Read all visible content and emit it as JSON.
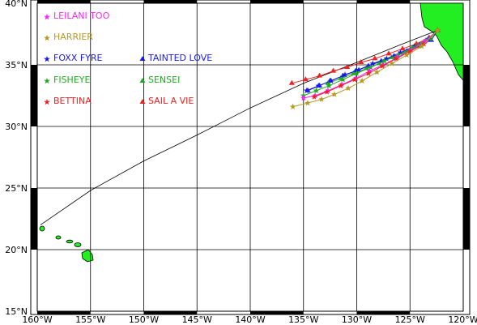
{
  "map": {
    "lon_range": [
      -160,
      -120
    ],
    "lat_range": [
      15,
      40
    ],
    "x_ticks": [
      "160°W",
      "155°W",
      "150°W",
      "145°W",
      "140°W",
      "135°W",
      "130°W",
      "125°W",
      "120°W"
    ],
    "y_ticks": [
      "15°N",
      "20°N",
      "25°N",
      "30°N",
      "35°N",
      "40°N"
    ],
    "grid": true,
    "land_color": "#22ee22",
    "border_style": "alternating black/white frame"
  },
  "legend": [
    {
      "label": "LEILANI TOO",
      "color": "#ff22ff",
      "marker": "star"
    },
    {
      "label": "HARRIER",
      "color": "#b39a22",
      "marker": "star"
    },
    {
      "label": "FOXX FYRE",
      "color": "#1a1aee",
      "marker": "star"
    },
    {
      "label": "TAINTED LOVE",
      "color": "#1a1aee",
      "marker": "triangle"
    },
    {
      "label": "FISHEYE",
      "color": "#22aa22",
      "marker": "star"
    },
    {
      "label": "SENSEI",
      "color": "#22aa22",
      "marker": "triangle"
    },
    {
      "label": "BETTINA",
      "color": "#ee2222",
      "marker": "star"
    },
    {
      "label": "SAIL A VIE",
      "color": "#ee2222",
      "marker": "triangle"
    }
  ],
  "great_circle": [
    [
      -122.4,
      37.8
    ],
    [
      -126,
      36.6
    ],
    [
      -130,
      35.2
    ],
    [
      -135,
      33.5
    ],
    [
      -140,
      31.5
    ],
    [
      -145,
      29.3
    ],
    [
      -150,
      27.2
    ],
    [
      -155,
      24.8
    ],
    [
      -159.7,
      22.0
    ]
  ],
  "tracks": [
    {
      "label": "SAIL A VIE",
      "color": "#ee2222",
      "marker": "triangle",
      "points": [
        [
          -122.4,
          37.8
        ],
        [
          -123.2,
          37.2
        ],
        [
          -124.4,
          36.7
        ],
        [
          -125.7,
          36.3
        ],
        [
          -127.0,
          35.9
        ],
        [
          -128.3,
          35.5
        ],
        [
          -129.6,
          35.2
        ],
        [
          -130.9,
          34.8
        ],
        [
          -132.2,
          34.5
        ],
        [
          -133.5,
          34.1
        ],
        [
          -134.8,
          33.8
        ],
        [
          -136.1,
          33.5
        ]
      ]
    },
    {
      "label": "TAINTED LOVE",
      "color": "#1a1aee",
      "marker": "triangle",
      "points": [
        [
          -122.4,
          37.8
        ],
        [
          -123.0,
          37.0
        ],
        [
          -124.1,
          36.6
        ],
        [
          -125.3,
          36.1
        ],
        [
          -126.5,
          35.7
        ],
        [
          -127.7,
          35.3
        ],
        [
          -128.9,
          34.9
        ],
        [
          -130.1,
          34.5
        ],
        [
          -131.3,
          34.1
        ],
        [
          -132.5,
          33.7
        ],
        [
          -133.5,
          33.3
        ],
        [
          -134.6,
          32.9
        ]
      ]
    },
    {
      "label": "SENSEI",
      "color": "#22aa22",
      "marker": "triangle",
      "points": [
        [
          -122.4,
          37.8
        ],
        [
          -123.1,
          37.1
        ],
        [
          -124.3,
          36.5
        ],
        [
          -125.5,
          36.0
        ],
        [
          -126.7,
          35.6
        ],
        [
          -127.9,
          35.1
        ],
        [
          -129.1,
          34.7
        ],
        [
          -130.3,
          34.3
        ],
        [
          -131.5,
          33.9
        ],
        [
          -132.7,
          33.5
        ]
      ]
    },
    {
      "label": "FOXX FYRE",
      "color": "#1a1aee",
      "marker": "star",
      "points": [
        [
          -122.4,
          37.8
        ],
        [
          -123.3,
          37.1
        ],
        [
          -124.6,
          36.5
        ],
        [
          -125.9,
          36.0
        ],
        [
          -127.2,
          35.5
        ],
        [
          -128.5,
          35.1
        ],
        [
          -129.8,
          34.6
        ],
        [
          -131.1,
          34.2
        ],
        [
          -132.4,
          33.7
        ],
        [
          -133.6,
          33.3
        ],
        [
          -134.7,
          32.9
        ]
      ]
    },
    {
      "label": "FISHEYE",
      "color": "#22aa22",
      "marker": "star",
      "points": [
        [
          -122.4,
          37.8
        ],
        [
          -123.5,
          37.0
        ],
        [
          -124.8,
          36.4
        ],
        [
          -126.1,
          35.8
        ],
        [
          -127.4,
          35.3
        ],
        [
          -128.7,
          34.8
        ],
        [
          -130.0,
          34.3
        ],
        [
          -131.3,
          33.8
        ],
        [
          -132.6,
          33.3
        ],
        [
          -133.8,
          32.9
        ],
        [
          -135.0,
          32.5
        ]
      ]
    },
    {
      "label": "LEILANI TOO",
      "color": "#ff22ff",
      "marker": "star",
      "points": [
        [
          -122.4,
          37.8
        ],
        [
          -123.6,
          36.9
        ],
        [
          -124.9,
          36.2
        ],
        [
          -126.2,
          35.6
        ],
        [
          -127.5,
          35.0
        ],
        [
          -128.8,
          34.5
        ],
        [
          -130.1,
          33.9
        ],
        [
          -131.4,
          33.4
        ],
        [
          -132.7,
          32.9
        ],
        [
          -133.9,
          32.5
        ],
        [
          -135.0,
          32.3
        ]
      ]
    },
    {
      "label": "BETTINA",
      "color": "#ee2222",
      "marker": "star",
      "points": [
        [
          -122.4,
          37.8
        ],
        [
          -123.7,
          36.7
        ],
        [
          -125.0,
          36.1
        ],
        [
          -126.3,
          35.5
        ],
        [
          -127.6,
          34.9
        ],
        [
          -128.9,
          34.3
        ],
        [
          -130.2,
          33.8
        ],
        [
          -131.5,
          33.3
        ],
        [
          -132.8,
          32.8
        ],
        [
          -134.0,
          32.4
        ]
      ]
    },
    {
      "label": "HARRIER",
      "color": "#b39a22",
      "marker": "star",
      "points": [
        [
          -122.4,
          37.8
        ],
        [
          -123.9,
          36.5
        ],
        [
          -125.3,
          35.8
        ],
        [
          -126.7,
          35.1
        ],
        [
          -128.1,
          34.4
        ],
        [
          -129.5,
          33.7
        ],
        [
          -130.8,
          33.1
        ],
        [
          -132.1,
          32.6
        ],
        [
          -133.3,
          32.2
        ],
        [
          -134.6,
          31.9
        ],
        [
          -136.0,
          31.6
        ]
      ]
    }
  ]
}
